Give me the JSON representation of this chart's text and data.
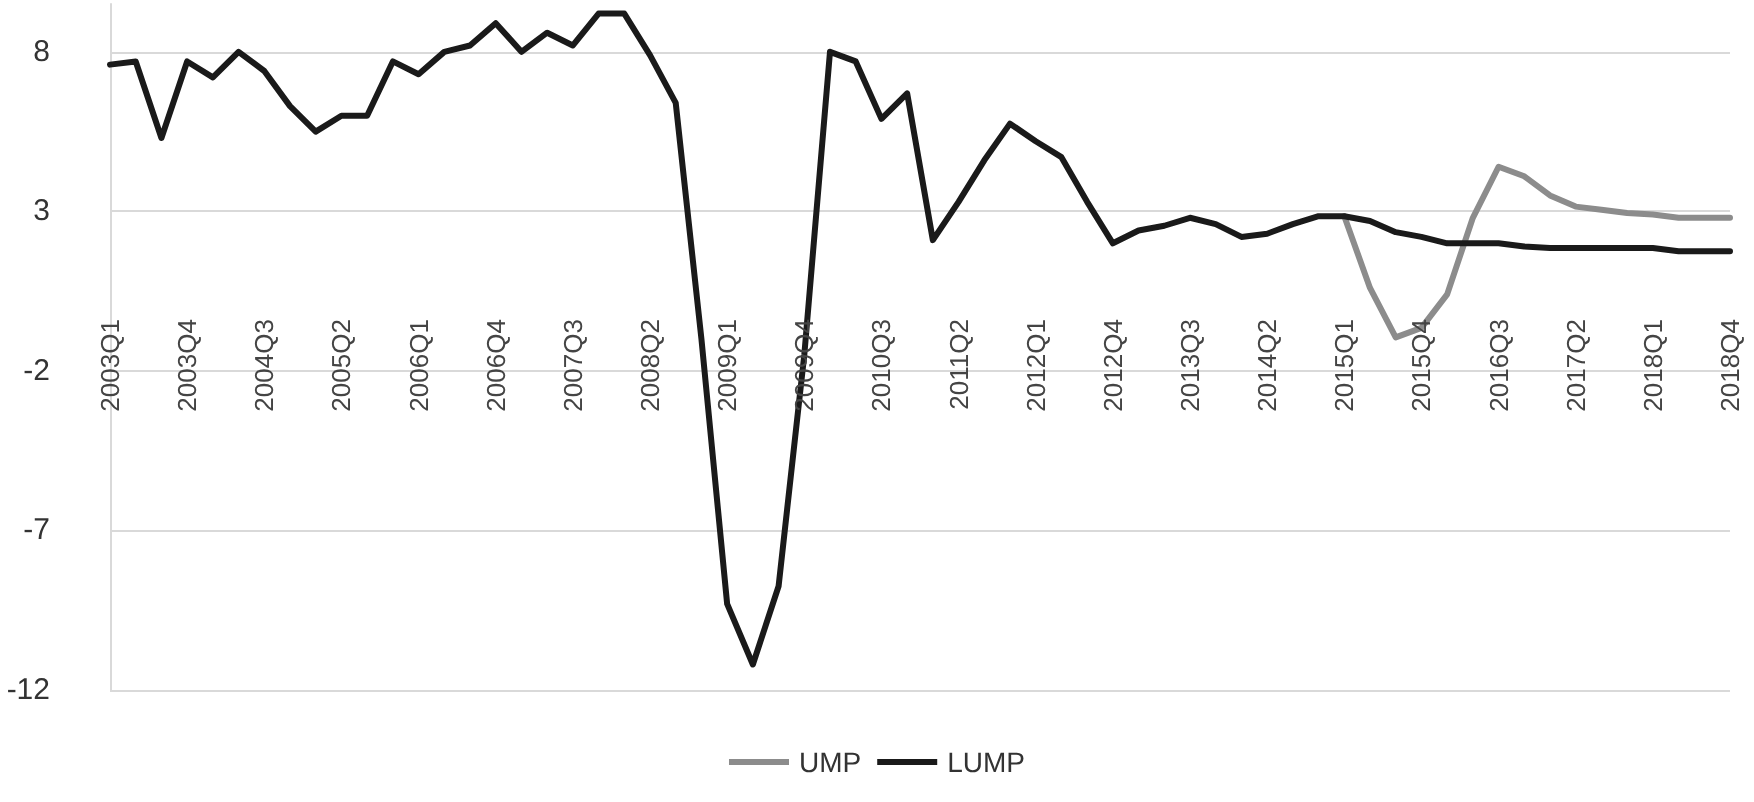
{
  "chart_data": {
    "type": "line",
    "categories": [
      "2003Q1",
      null,
      null,
      "2003Q4",
      null,
      null,
      "2004Q3",
      null,
      null,
      "2005Q2",
      null,
      null,
      "2006Q1",
      null,
      null,
      "2006Q4",
      null,
      null,
      "2007Q3",
      null,
      null,
      "2008Q2",
      null,
      null,
      "2009Q1",
      null,
      null,
      "2009Q4",
      null,
      null,
      "2010Q3",
      null,
      null,
      "2011Q2",
      null,
      null,
      "2012Q1",
      null,
      null,
      "2012Q4",
      null,
      null,
      "2013Q3",
      null,
      null,
      "2014Q2",
      null,
      null,
      "2015Q1",
      null,
      null,
      "2015Q4",
      null,
      null,
      "2016Q3",
      null,
      null,
      "2017Q2",
      null,
      null,
      "2018Q1",
      null,
      null,
      "2018Q4"
    ],
    "series": [
      {
        "name": "UMP",
        "color": "#8c8c8c",
        "values": [
          null,
          null,
          null,
          null,
          null,
          null,
          null,
          null,
          null,
          null,
          null,
          null,
          null,
          null,
          null,
          null,
          null,
          null,
          null,
          null,
          null,
          null,
          null,
          null,
          null,
          null,
          null,
          null,
          null,
          null,
          null,
          null,
          null,
          null,
          null,
          null,
          null,
          null,
          null,
          null,
          null,
          null,
          null,
          null,
          null,
          null,
          null,
          null,
          2.85,
          0.6,
          -0.95,
          -0.65,
          0.4,
          2.8,
          4.4,
          4.1,
          3.5,
          3.15,
          3.05,
          2.95,
          2.9,
          2.8,
          2.8,
          2.8
        ]
      },
      {
        "name": "LUMP",
        "color": "#1a1a1a",
        "values": [
          7.6,
          7.7,
          5.3,
          7.7,
          7.2,
          8.0,
          7.4,
          6.3,
          5.5,
          6.0,
          6.0,
          7.7,
          7.3,
          8.0,
          8.2,
          8.9,
          8.0,
          8.6,
          8.2,
          9.2,
          9.2,
          7.9,
          6.4,
          -1.0,
          -9.3,
          -11.2,
          -8.75,
          -1.5,
          8.0,
          7.7,
          5.9,
          6.7,
          2.1,
          3.3,
          4.6,
          5.75,
          5.2,
          4.7,
          3.3,
          2.0,
          2.4,
          2.55,
          2.8,
          2.6,
          2.2,
          2.3,
          2.6,
          2.85,
          2.85,
          2.7,
          2.35,
          2.2,
          2.0,
          2.0,
          2.0,
          1.9,
          1.85,
          1.85,
          1.85,
          1.85,
          1.85,
          1.75,
          1.75,
          1.75
        ]
      }
    ],
    "ylim": [
      -12,
      9.5
    ],
    "yticks": [
      -12,
      -7,
      -2,
      3,
      8
    ],
    "grid": "y",
    "legend": "bottom",
    "marker": "none",
    "line_style": "solid"
  }
}
